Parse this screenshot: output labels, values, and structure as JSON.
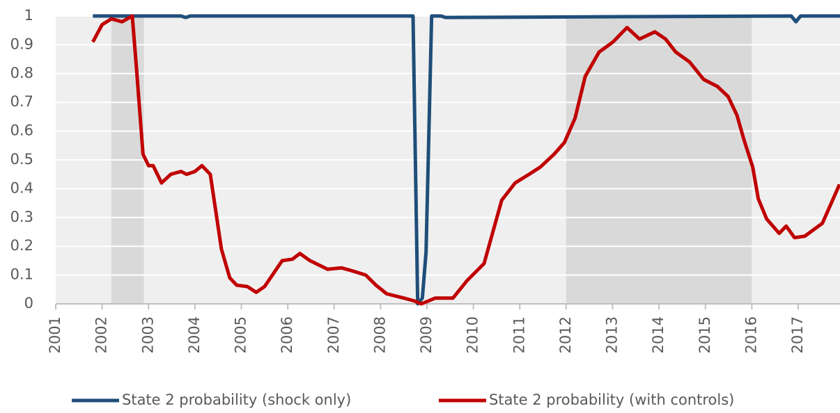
{
  "chart_data": {
    "type": "line",
    "xlim": [
      2001,
      2017.9
    ],
    "xticks": [
      2001,
      2002,
      2003,
      2004,
      2005,
      2006,
      2007,
      2008,
      2009,
      2010,
      2011,
      2012,
      2013,
      2014,
      2015,
      2016,
      2017
    ],
    "ylim": [
      0,
      1
    ],
    "yticks": [
      0,
      0.1,
      0.2,
      0.3,
      0.4,
      0.5,
      0.6,
      0.7,
      0.8,
      0.9,
      1
    ],
    "grid": true,
    "legend": "bottom",
    "shaded_regions": [
      [
        2002.2,
        2002.9
      ],
      [
        2012,
        2016
      ]
    ],
    "series": [
      {
        "name": "State 2 probability (shock only)",
        "color": "#1f4e79",
        "x": [
          2001.8,
          2003.7,
          2003.8,
          2003.9,
          2008.7,
          2008.8,
          2008.9,
          2008.98,
          2009.1,
          2009.3,
          2009.4,
          2016.85,
          2016.95,
          2017.05,
          2017.9
        ],
        "values": [
          1,
          1,
          0.995,
          1,
          1,
          0,
          0.02,
          0.18,
          1,
          1,
          0.995,
          1,
          0.98,
          1,
          1
        ]
      },
      {
        "name": "State 2 probability (with controls)",
        "color": "#c00000",
        "x": [
          2001.8,
          2002.0,
          2002.2,
          2002.43,
          2002.65,
          2002.74,
          2002.88,
          2003.0,
          2003.1,
          2003.28,
          2003.48,
          2003.7,
          2003.82,
          2004.0,
          2004.15,
          2004.33,
          2004.57,
          2004.75,
          2004.9,
          2005.13,
          2005.32,
          2005.5,
          2005.88,
          2006.1,
          2006.26,
          2006.48,
          2006.86,
          2007.16,
          2007.38,
          2007.68,
          2007.9,
          2008.13,
          2008.5,
          2008.73,
          2008.88,
          2009.18,
          2009.56,
          2009.86,
          2010.23,
          2010.61,
          2010.9,
          2011.2,
          2011.44,
          2011.74,
          2011.96,
          2012.19,
          2012.41,
          2012.71,
          2013.01,
          2013.31,
          2013.58,
          2013.91,
          2014.14,
          2014.36,
          2014.66,
          2014.96,
          2015.26,
          2015.49,
          2015.68,
          2015.83,
          2016.02,
          2016.14,
          2016.32,
          2016.59,
          2016.74,
          2016.92,
          2017.14,
          2017.52,
          2017.89
        ],
        "values": [
          0.91,
          0.97,
          0.99,
          0.98,
          1.0,
          0.82,
          0.52,
          0.48,
          0.48,
          0.42,
          0.45,
          0.46,
          0.45,
          0.46,
          0.48,
          0.45,
          0.19,
          0.09,
          0.065,
          0.06,
          0.04,
          0.06,
          0.15,
          0.155,
          0.175,
          0.15,
          0.12,
          0.125,
          0.115,
          0.1,
          0.065,
          0.035,
          0.02,
          0.01,
          0.0,
          0.02,
          0.02,
          0.08,
          0.14,
          0.36,
          0.42,
          0.45,
          0.475,
          0.52,
          0.56,
          0.645,
          0.79,
          0.875,
          0.91,
          0.96,
          0.92,
          0.945,
          0.92,
          0.875,
          0.84,
          0.78,
          0.755,
          0.72,
          0.655,
          0.57,
          0.475,
          0.365,
          0.295,
          0.245,
          0.27,
          0.23,
          0.235,
          0.28,
          0.415
        ]
      }
    ]
  }
}
